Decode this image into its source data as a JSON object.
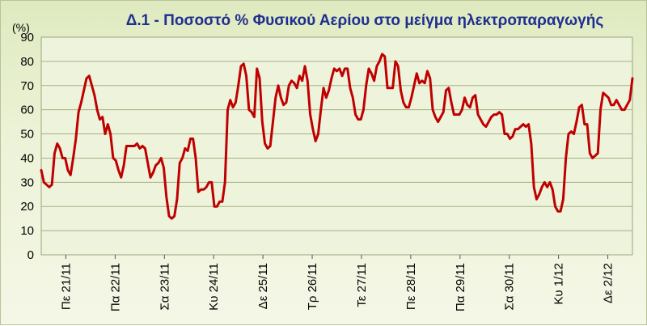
{
  "chart_data": {
    "type": "line",
    "title": "Δ.1 - Ποσοστό % Φυσικού Αερίου στο μείγμα ηλεκτροπαραγωγής",
    "ylabel": "(%)",
    "xlabel": "",
    "ylim": [
      0,
      90
    ],
    "yticks": [
      0,
      10,
      20,
      30,
      40,
      50,
      60,
      70,
      80,
      90
    ],
    "grid": true,
    "legend": "none",
    "x_tick_labels": [
      "Πε 21/11",
      "Πα 22/11",
      "Σα 23/11",
      "Κυ 24/11",
      "Δε 25/11",
      "Τρ 26/11",
      "Τε 27/11",
      "Πε 28/11",
      "Πα 29/11",
      "Σα 30/11",
      "Κυ 1/12",
      "Δε 2/12"
    ],
    "series": [
      {
        "color": "#c00000",
        "values": [
          35,
          30,
          29,
          28,
          29,
          42,
          46,
          44,
          40,
          40,
          35,
          33,
          40,
          48,
          59,
          63,
          68,
          73,
          74,
          70,
          66,
          60,
          56,
          57,
          50,
          54,
          50,
          40,
          39,
          35,
          32,
          37,
          45,
          45,
          45,
          45,
          46,
          44,
          45,
          44,
          38,
          32,
          34,
          37,
          38,
          40,
          36,
          24,
          16,
          15,
          16,
          23,
          38,
          40,
          44,
          43,
          48,
          48,
          40,
          26,
          27,
          27,
          28,
          30,
          30,
          20,
          20,
          22,
          22,
          30,
          60,
          64,
          61,
          63,
          70,
          78,
          79,
          74,
          60,
          59,
          57,
          77,
          73,
          55,
          46,
          44,
          45,
          55,
          65,
          70,
          65,
          62,
          63,
          70,
          72,
          71,
          69,
          74,
          72,
          78,
          72,
          58,
          52,
          47,
          50,
          60,
          69,
          65,
          68,
          73,
          77,
          76,
          77,
          74,
          77,
          77,
          69,
          65,
          58,
          56,
          56,
          60,
          70,
          77,
          75,
          72,
          78,
          80,
          83,
          82,
          69,
          69,
          69,
          80,
          78,
          68,
          63,
          61,
          61,
          65,
          70,
          75,
          71,
          72,
          71,
          76,
          73,
          60,
          57,
          55,
          57,
          59,
          68,
          69,
          63,
          58,
          58,
          58,
          60,
          65,
          62,
          61,
          65,
          66,
          58,
          56,
          54,
          53,
          55,
          57,
          58,
          58,
          59,
          58,
          50,
          50,
          48,
          49,
          52,
          52,
          53,
          54,
          53,
          54,
          46,
          28,
          23,
          25,
          28,
          30,
          28,
          30,
          27,
          20,
          18,
          18,
          23,
          40,
          50,
          51,
          50,
          55,
          61,
          62,
          54,
          54,
          42,
          40,
          41,
          42,
          60,
          67,
          66,
          65,
          62,
          62,
          64,
          62,
          60,
          60,
          62,
          64,
          73
        ]
      }
    ]
  }
}
